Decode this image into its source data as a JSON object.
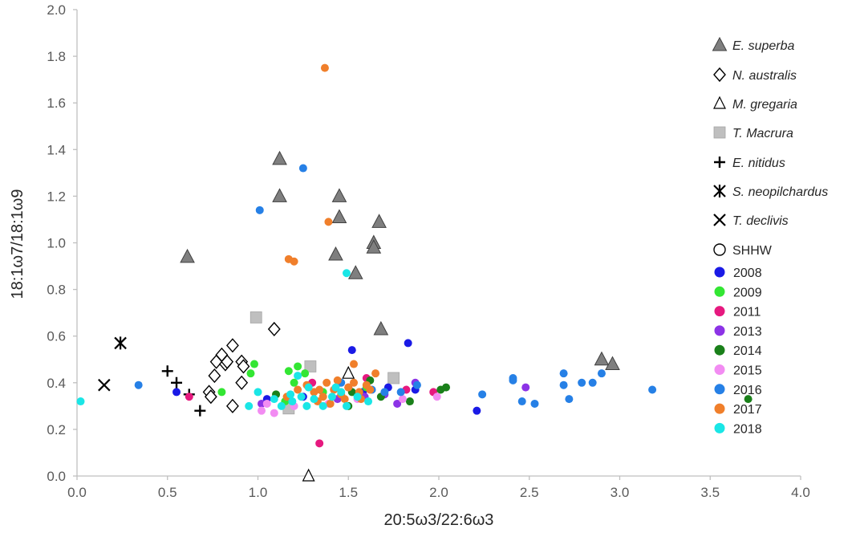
{
  "chart_data": {
    "type": "scatter",
    "title": "",
    "xlabel": "20:5ω3/22:6ω3",
    "ylabel": "18:1ω7/18:1ω9",
    "xlim": [
      0,
      4
    ],
    "ylim": [
      0,
      2
    ],
    "x_ticks": [
      "0.0",
      "0.5",
      "1.0",
      "1.5",
      "2.0",
      "2.5",
      "3.0",
      "3.5",
      "4.0"
    ],
    "y_ticks": [
      "0.0",
      "0.2",
      "0.4",
      "0.6",
      "0.8",
      "1.0",
      "1.2",
      "1.4",
      "1.6",
      "1.8",
      "2.0"
    ],
    "grid": false,
    "legend_position": "right",
    "colors": {
      "axis": "#bfbfbf",
      "tick_text": "#595959",
      "e_superba": "#7f7f7f",
      "t_macrura": "#bfbfbf"
    },
    "series": [
      {
        "name": "E. superba",
        "marker": "triangle-filled",
        "color": "#7f7f7f",
        "italic": true,
        "points": [
          [
            0.61,
            0.94
          ],
          [
            1.12,
            1.36
          ],
          [
            1.12,
            1.2
          ],
          [
            1.45,
            1.2
          ],
          [
            1.45,
            1.11
          ],
          [
            1.43,
            0.95
          ],
          [
            1.54,
            0.87
          ],
          [
            1.64,
            1.0
          ],
          [
            1.64,
            0.98
          ],
          [
            1.67,
            1.09
          ],
          [
            1.68,
            0.63
          ],
          [
            2.9,
            0.5
          ],
          [
            2.96,
            0.48
          ]
        ]
      },
      {
        "name": "N. australis",
        "marker": "diamond-open",
        "color": "#000000",
        "italic": true,
        "points": [
          [
            0.73,
            0.36
          ],
          [
            0.74,
            0.34
          ],
          [
            0.76,
            0.43
          ],
          [
            0.77,
            0.49
          ],
          [
            0.8,
            0.52
          ],
          [
            0.82,
            0.48
          ],
          [
            0.83,
            0.49
          ],
          [
            0.86,
            0.56
          ],
          [
            0.86,
            0.3
          ],
          [
            0.91,
            0.4
          ],
          [
            0.91,
            0.49
          ],
          [
            0.92,
            0.47
          ],
          [
            1.09,
            0.63
          ]
        ]
      },
      {
        "name": "M. gregaria",
        "marker": "triangle-open",
        "color": "#000000",
        "italic": true,
        "points": [
          [
            1.28,
            0.0
          ],
          [
            1.5,
            0.44
          ]
        ]
      },
      {
        "name": "T. Macrura",
        "marker": "square-filled",
        "color": "#bfbfbf",
        "italic": true,
        "points": [
          [
            0.99,
            0.68
          ],
          [
            1.17,
            0.29
          ],
          [
            1.29,
            0.47
          ],
          [
            1.75,
            0.42
          ]
        ]
      },
      {
        "name": "E. nitidus",
        "marker": "plus",
        "color": "#000000",
        "italic": true,
        "points": [
          [
            0.5,
            0.45
          ],
          [
            0.55,
            0.4
          ],
          [
            0.62,
            0.35
          ],
          [
            0.68,
            0.28
          ]
        ]
      },
      {
        "name": "S. neopilchardus",
        "marker": "asterisk",
        "color": "#000000",
        "italic": true,
        "points": [
          [
            0.24,
            0.57
          ]
        ]
      },
      {
        "name": "T. declivis",
        "marker": "x",
        "color": "#000000",
        "italic": true,
        "points": [
          [
            0.15,
            0.39
          ]
        ]
      },
      {
        "name": "SHHW",
        "marker": "circle-open",
        "color": "#000000",
        "italic": false,
        "points": []
      },
      {
        "name": "2008",
        "marker": "circle",
        "color": "#1a1ae6",
        "points": [
          [
            0.55,
            0.36
          ],
          [
            1.05,
            0.33
          ],
          [
            1.52,
            0.54
          ],
          [
            1.58,
            0.36
          ],
          [
            1.83,
            0.57
          ],
          [
            1.87,
            0.37
          ],
          [
            2.21,
            0.28
          ],
          [
            1.25,
            0.34
          ],
          [
            1.72,
            0.38
          ]
        ]
      },
      {
        "name": "2009",
        "marker": "circle",
        "color": "#33e633",
        "points": [
          [
            0.8,
            0.36
          ],
          [
            0.98,
            0.48
          ],
          [
            0.96,
            0.44
          ],
          [
            1.17,
            0.45
          ],
          [
            1.22,
            0.47
          ],
          [
            1.2,
            0.4
          ],
          [
            1.36,
            0.36
          ],
          [
            1.45,
            0.4
          ],
          [
            1.15,
            0.32
          ],
          [
            1.6,
            0.38
          ],
          [
            1.26,
            0.44
          ]
        ]
      },
      {
        "name": "2011",
        "marker": "circle",
        "color": "#e6197f",
        "points": [
          [
            0.62,
            0.34
          ],
          [
            1.34,
            0.14
          ],
          [
            1.3,
            0.4
          ],
          [
            1.5,
            0.38
          ],
          [
            1.82,
            0.37
          ],
          [
            1.97,
            0.36
          ],
          [
            1.6,
            0.42
          ]
        ]
      },
      {
        "name": "2013",
        "marker": "circle",
        "color": "#8c33e6",
        "points": [
          [
            1.02,
            0.31
          ],
          [
            1.44,
            0.33
          ],
          [
            1.59,
            0.34
          ],
          [
            1.7,
            0.35
          ],
          [
            1.87,
            0.4
          ],
          [
            2.48,
            0.38
          ],
          [
            1.77,
            0.31
          ]
        ]
      },
      {
        "name": "2014",
        "marker": "circle",
        "color": "#1a801a",
        "points": [
          [
            1.1,
            0.35
          ],
          [
            1.52,
            0.36
          ],
          [
            1.68,
            0.34
          ],
          [
            1.84,
            0.32
          ],
          [
            2.01,
            0.37
          ],
          [
            2.04,
            0.38
          ],
          [
            3.71,
            0.33
          ],
          [
            1.62,
            0.41
          ],
          [
            1.5,
            0.3
          ]
        ]
      },
      {
        "name": "2015",
        "marker": "circle",
        "color": "#f28cf2",
        "points": [
          [
            1.02,
            0.28
          ],
          [
            1.05,
            0.31
          ],
          [
            1.09,
            0.27
          ],
          [
            1.2,
            0.3
          ],
          [
            1.39,
            0.31
          ],
          [
            1.55,
            0.33
          ],
          [
            1.99,
            0.34
          ],
          [
            1.8,
            0.33
          ]
        ]
      },
      {
        "name": "2016",
        "marker": "circle",
        "color": "#2680e6",
        "points": [
          [
            0.34,
            0.39
          ],
          [
            1.01,
            1.14
          ],
          [
            1.25,
            1.32
          ],
          [
            1.46,
            0.4
          ],
          [
            1.63,
            0.37
          ],
          [
            1.79,
            0.36
          ],
          [
            1.88,
            0.39
          ],
          [
            2.24,
            0.35
          ],
          [
            2.41,
            0.42
          ],
          [
            2.41,
            0.41
          ],
          [
            2.46,
            0.32
          ],
          [
            2.53,
            0.31
          ],
          [
            2.69,
            0.44
          ],
          [
            2.69,
            0.39
          ],
          [
            2.72,
            0.33
          ],
          [
            2.79,
            0.4
          ],
          [
            2.85,
            0.4
          ],
          [
            2.9,
            0.44
          ],
          [
            3.18,
            0.37
          ],
          [
            1.7,
            0.36
          ]
        ]
      },
      {
        "name": "2017",
        "marker": "circle",
        "color": "#f07f2b",
        "points": [
          [
            1.37,
            1.75
          ],
          [
            1.39,
            1.09
          ],
          [
            1.17,
            0.93
          ],
          [
            1.2,
            0.92
          ],
          [
            1.53,
            0.48
          ],
          [
            1.65,
            0.44
          ],
          [
            1.34,
            0.37
          ],
          [
            1.38,
            0.4
          ],
          [
            1.42,
            0.37
          ],
          [
            1.46,
            0.35
          ],
          [
            1.5,
            0.38
          ],
          [
            1.56,
            0.36
          ],
          [
            1.6,
            0.39
          ],
          [
            1.36,
            0.34
          ],
          [
            1.31,
            0.36
          ],
          [
            1.27,
            0.39
          ],
          [
            1.44,
            0.41
          ],
          [
            1.48,
            0.33
          ],
          [
            1.4,
            0.31
          ],
          [
            1.53,
            0.4
          ],
          [
            1.33,
            0.32
          ],
          [
            1.22,
            0.37
          ],
          [
            1.16,
            0.34
          ],
          [
            1.57,
            0.33
          ],
          [
            1.62,
            0.37
          ]
        ]
      },
      {
        "name": "2018",
        "marker": "circle",
        "color": "#1ae6e6",
        "points": [
          [
            0.02,
            0.32
          ],
          [
            1.49,
            0.87
          ],
          [
            1.22,
            0.43
          ],
          [
            1.0,
            0.36
          ],
          [
            1.09,
            0.33
          ],
          [
            1.13,
            0.3
          ],
          [
            1.19,
            0.32
          ],
          [
            1.24,
            0.34
          ],
          [
            1.28,
            0.38
          ],
          [
            1.31,
            0.33
          ],
          [
            1.36,
            0.3
          ],
          [
            1.41,
            0.34
          ],
          [
            1.46,
            0.36
          ],
          [
            1.49,
            0.3
          ],
          [
            1.55,
            0.34
          ],
          [
            1.61,
            0.32
          ],
          [
            1.27,
            0.3
          ],
          [
            1.18,
            0.35
          ],
          [
            0.95,
            0.3
          ],
          [
            1.43,
            0.38
          ]
        ]
      }
    ]
  }
}
